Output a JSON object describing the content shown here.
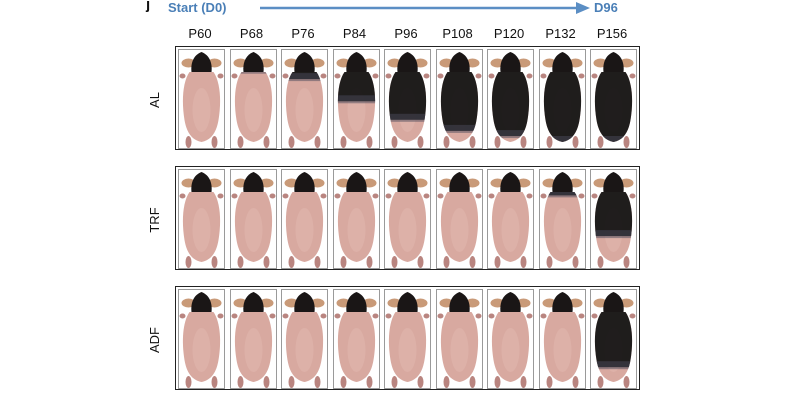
{
  "panel_mark": "j",
  "timeline": {
    "start_label": "Start (D0)",
    "end_label": "D96",
    "arrow_color": "#5b8ec4"
  },
  "columns": [
    "P60",
    "P68",
    "P76",
    "P84",
    "P96",
    "P108",
    "P120",
    "P132",
    "P156"
  ],
  "rows": [
    {
      "label": "AL",
      "dark_coverage": [
        0.0,
        0.05,
        0.15,
        0.45,
        0.7,
        0.85,
        0.92,
        1.0,
        1.0
      ]
    },
    {
      "label": "TRF",
      "dark_coverage": [
        0.0,
        0.0,
        0.0,
        0.0,
        0.0,
        0.0,
        0.0,
        0.1,
        0.65
      ]
    },
    {
      "label": "ADF",
      "dark_coverage": [
        0.0,
        0.0,
        0.0,
        0.0,
        0.0,
        0.0,
        0.0,
        0.0,
        0.8
      ]
    }
  ],
  "colors": {
    "skin": "#d8a9a0",
    "skin_shadow": "#b98580",
    "head": "#1a1616",
    "ear": "#c99a78",
    "fur": "#151515"
  },
  "icon_names": [
    "mouse-dorsal-view-icon"
  ]
}
